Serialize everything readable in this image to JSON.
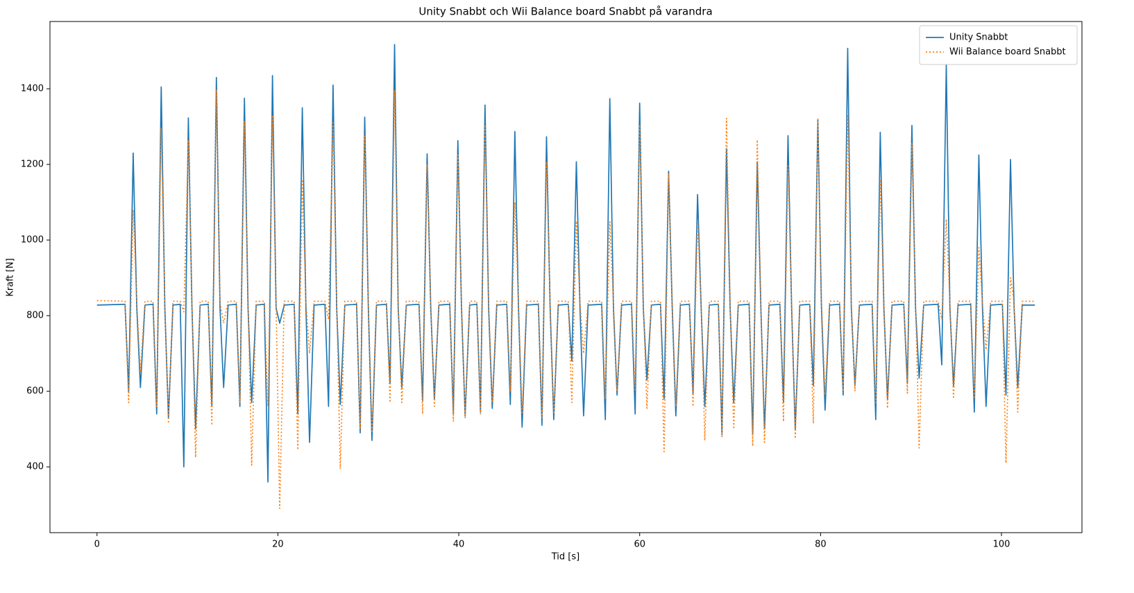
{
  "chart_data": {
    "type": "line",
    "title": "Unity Snabbt och Wii Balance board Snabbt på varandra",
    "x_label": "Tid [s]",
    "y_label": "Kraft [N]",
    "xlim": [
      -5.2,
      108.9
    ],
    "ylim": [
      226,
      1578
    ],
    "xticks": [
      0,
      20,
      40,
      60,
      80,
      100
    ],
    "yticks": [
      400,
      600,
      800,
      1000,
      1200,
      1400
    ],
    "legend": "upper right",
    "x": [
      0,
      3.1,
      3.5,
      4.0,
      4.4,
      4.8,
      5.3,
      6.2,
      6.6,
      7.1,
      7.5,
      7.9,
      8.4,
      9.2,
      9.6,
      10.1,
      10.5,
      10.9,
      11.4,
      12.3,
      12.7,
      13.2,
      13.6,
      14.0,
      14.5,
      15.4,
      15.8,
      16.3,
      16.7,
      17.1,
      17.6,
      18.5,
      18.9,
      19.4,
      19.8,
      20.2,
      20.7,
      21.8,
      22.2,
      22.7,
      23.1,
      23.5,
      24.0,
      25.2,
      25.6,
      26.1,
      26.5,
      26.9,
      27.4,
      28.7,
      29.1,
      29.6,
      30.0,
      30.4,
      30.9,
      32.0,
      32.4,
      32.9,
      33.3,
      33.7,
      34.2,
      35.6,
      36.0,
      36.5,
      36.9,
      37.3,
      37.8,
      39.0,
      39.4,
      39.9,
      40.3,
      40.7,
      41.2,
      42.0,
      42.4,
      42.9,
      43.3,
      43.7,
      44.2,
      45.3,
      45.7,
      46.2,
      46.6,
      47.0,
      47.5,
      48.8,
      49.2,
      49.7,
      50.1,
      50.5,
      51.0,
      52.1,
      52.5,
      53.0,
      53.4,
      53.8,
      54.3,
      55.8,
      56.2,
      56.7,
      57.1,
      57.5,
      58.0,
      59.1,
      59.5,
      60.0,
      60.4,
      60.8,
      61.3,
      62.3,
      62.7,
      63.2,
      63.6,
      64.0,
      64.5,
      65.5,
      65.9,
      66.4,
      66.8,
      67.2,
      67.7,
      68.7,
      69.1,
      69.6,
      70.0,
      70.4,
      70.9,
      72.1,
      72.5,
      73.0,
      73.4,
      73.8,
      74.3,
      75.5,
      75.9,
      76.4,
      76.8,
      77.2,
      77.7,
      78.8,
      79.2,
      79.7,
      80.1,
      80.5,
      81.0,
      82.1,
      82.5,
      83.0,
      83.4,
      83.8,
      84.3,
      85.7,
      86.1,
      86.6,
      87.0,
      87.4,
      87.9,
      89.2,
      89.6,
      90.1,
      90.5,
      90.9,
      91.4,
      93.0,
      93.4,
      93.9,
      94.3,
      94.7,
      95.2,
      96.6,
      97.0,
      97.5,
      97.9,
      98.3,
      98.8,
      100.1,
      100.5,
      101.0,
      101.4,
      101.8,
      102.3,
      103.7
    ],
    "series": [
      {
        "name": "Unity Snabbt",
        "color": "#1f77b4",
        "linestyle": "solid",
        "values": [
          828,
          830,
          600,
          1230,
          820,
          610,
          828,
          830,
          540,
          1405,
          820,
          530,
          828,
          830,
          400,
          1323,
          820,
          500,
          828,
          830,
          560,
          1430,
          820,
          610,
          828,
          830,
          560,
          1375,
          820,
          570,
          828,
          830,
          360,
          1435,
          820,
          780,
          828,
          830,
          540,
          1350,
          820,
          465,
          828,
          830,
          560,
          1410,
          820,
          565,
          828,
          830,
          490,
          1325,
          820,
          470,
          828,
          830,
          620,
          1517,
          820,
          610,
          828,
          830,
          575,
          1228,
          820,
          580,
          828,
          830,
          540,
          1263,
          820,
          535,
          828,
          830,
          545,
          1357,
          820,
          555,
          828,
          830,
          565,
          1287,
          820,
          505,
          828,
          830,
          510,
          1273,
          820,
          525,
          828,
          830,
          680,
          1207,
          820,
          535,
          828,
          830,
          525,
          1374,
          820,
          590,
          828,
          830,
          540,
          1362,
          820,
          630,
          828,
          830,
          580,
          1182,
          820,
          535,
          828,
          830,
          595,
          1120,
          820,
          560,
          828,
          830,
          485,
          1242,
          820,
          570,
          828,
          830,
          485,
          1207,
          820,
          500,
          828,
          830,
          570,
          1276,
          820,
          500,
          828,
          830,
          615,
          1318,
          820,
          550,
          828,
          830,
          590,
          1507,
          820,
          615,
          828,
          830,
          525,
          1285,
          820,
          580,
          828,
          830,
          620,
          1303,
          820,
          635,
          828,
          830,
          670,
          1463,
          820,
          615,
          828,
          830,
          545,
          1225,
          820,
          560,
          828,
          830,
          590,
          1213,
          820,
          610,
          828,
          828
        ]
      },
      {
        "name": "Wii Balance board Snabbt",
        "color": "#ff7f0e",
        "linestyle": "dotted",
        "values": [
          840,
          838,
          570,
          1080,
          835,
          650,
          838,
          838,
          560,
          1297,
          835,
          515,
          838,
          838,
          810,
          1265,
          835,
          425,
          838,
          838,
          510,
          1398,
          835,
          780,
          838,
          838,
          570,
          1313,
          835,
          405,
          838,
          838,
          560,
          1330,
          835,
          290,
          838,
          838,
          445,
          1160,
          835,
          700,
          838,
          838,
          790,
          1310,
          835,
          395,
          838,
          838,
          500,
          1275,
          835,
          490,
          838,
          838,
          570,
          1397,
          835,
          570,
          838,
          838,
          540,
          1200,
          835,
          560,
          838,
          838,
          520,
          1225,
          835,
          530,
          838,
          838,
          540,
          1305,
          835,
          570,
          838,
          838,
          600,
          1100,
          835,
          540,
          838,
          838,
          530,
          1207,
          835,
          540,
          838,
          838,
          570,
          1050,
          835,
          700,
          838,
          838,
          580,
          1048,
          835,
          600,
          838,
          838,
          600,
          1305,
          835,
          555,
          838,
          838,
          440,
          1175,
          835,
          560,
          838,
          838,
          560,
          1050,
          835,
          470,
          838,
          838,
          480,
          1322,
          835,
          500,
          838,
          838,
          455,
          1265,
          835,
          465,
          838,
          838,
          520,
          1200,
          835,
          475,
          838,
          838,
          515,
          1320,
          835,
          590,
          838,
          838,
          600,
          1332,
          835,
          600,
          838,
          838,
          570,
          1160,
          835,
          555,
          838,
          838,
          595,
          1255,
          835,
          450,
          838,
          838,
          790,
          1055,
          835,
          580,
          838,
          838,
          580,
          980,
          835,
          710,
          838,
          838,
          410,
          900,
          835,
          545,
          838,
          838
        ]
      }
    ]
  }
}
